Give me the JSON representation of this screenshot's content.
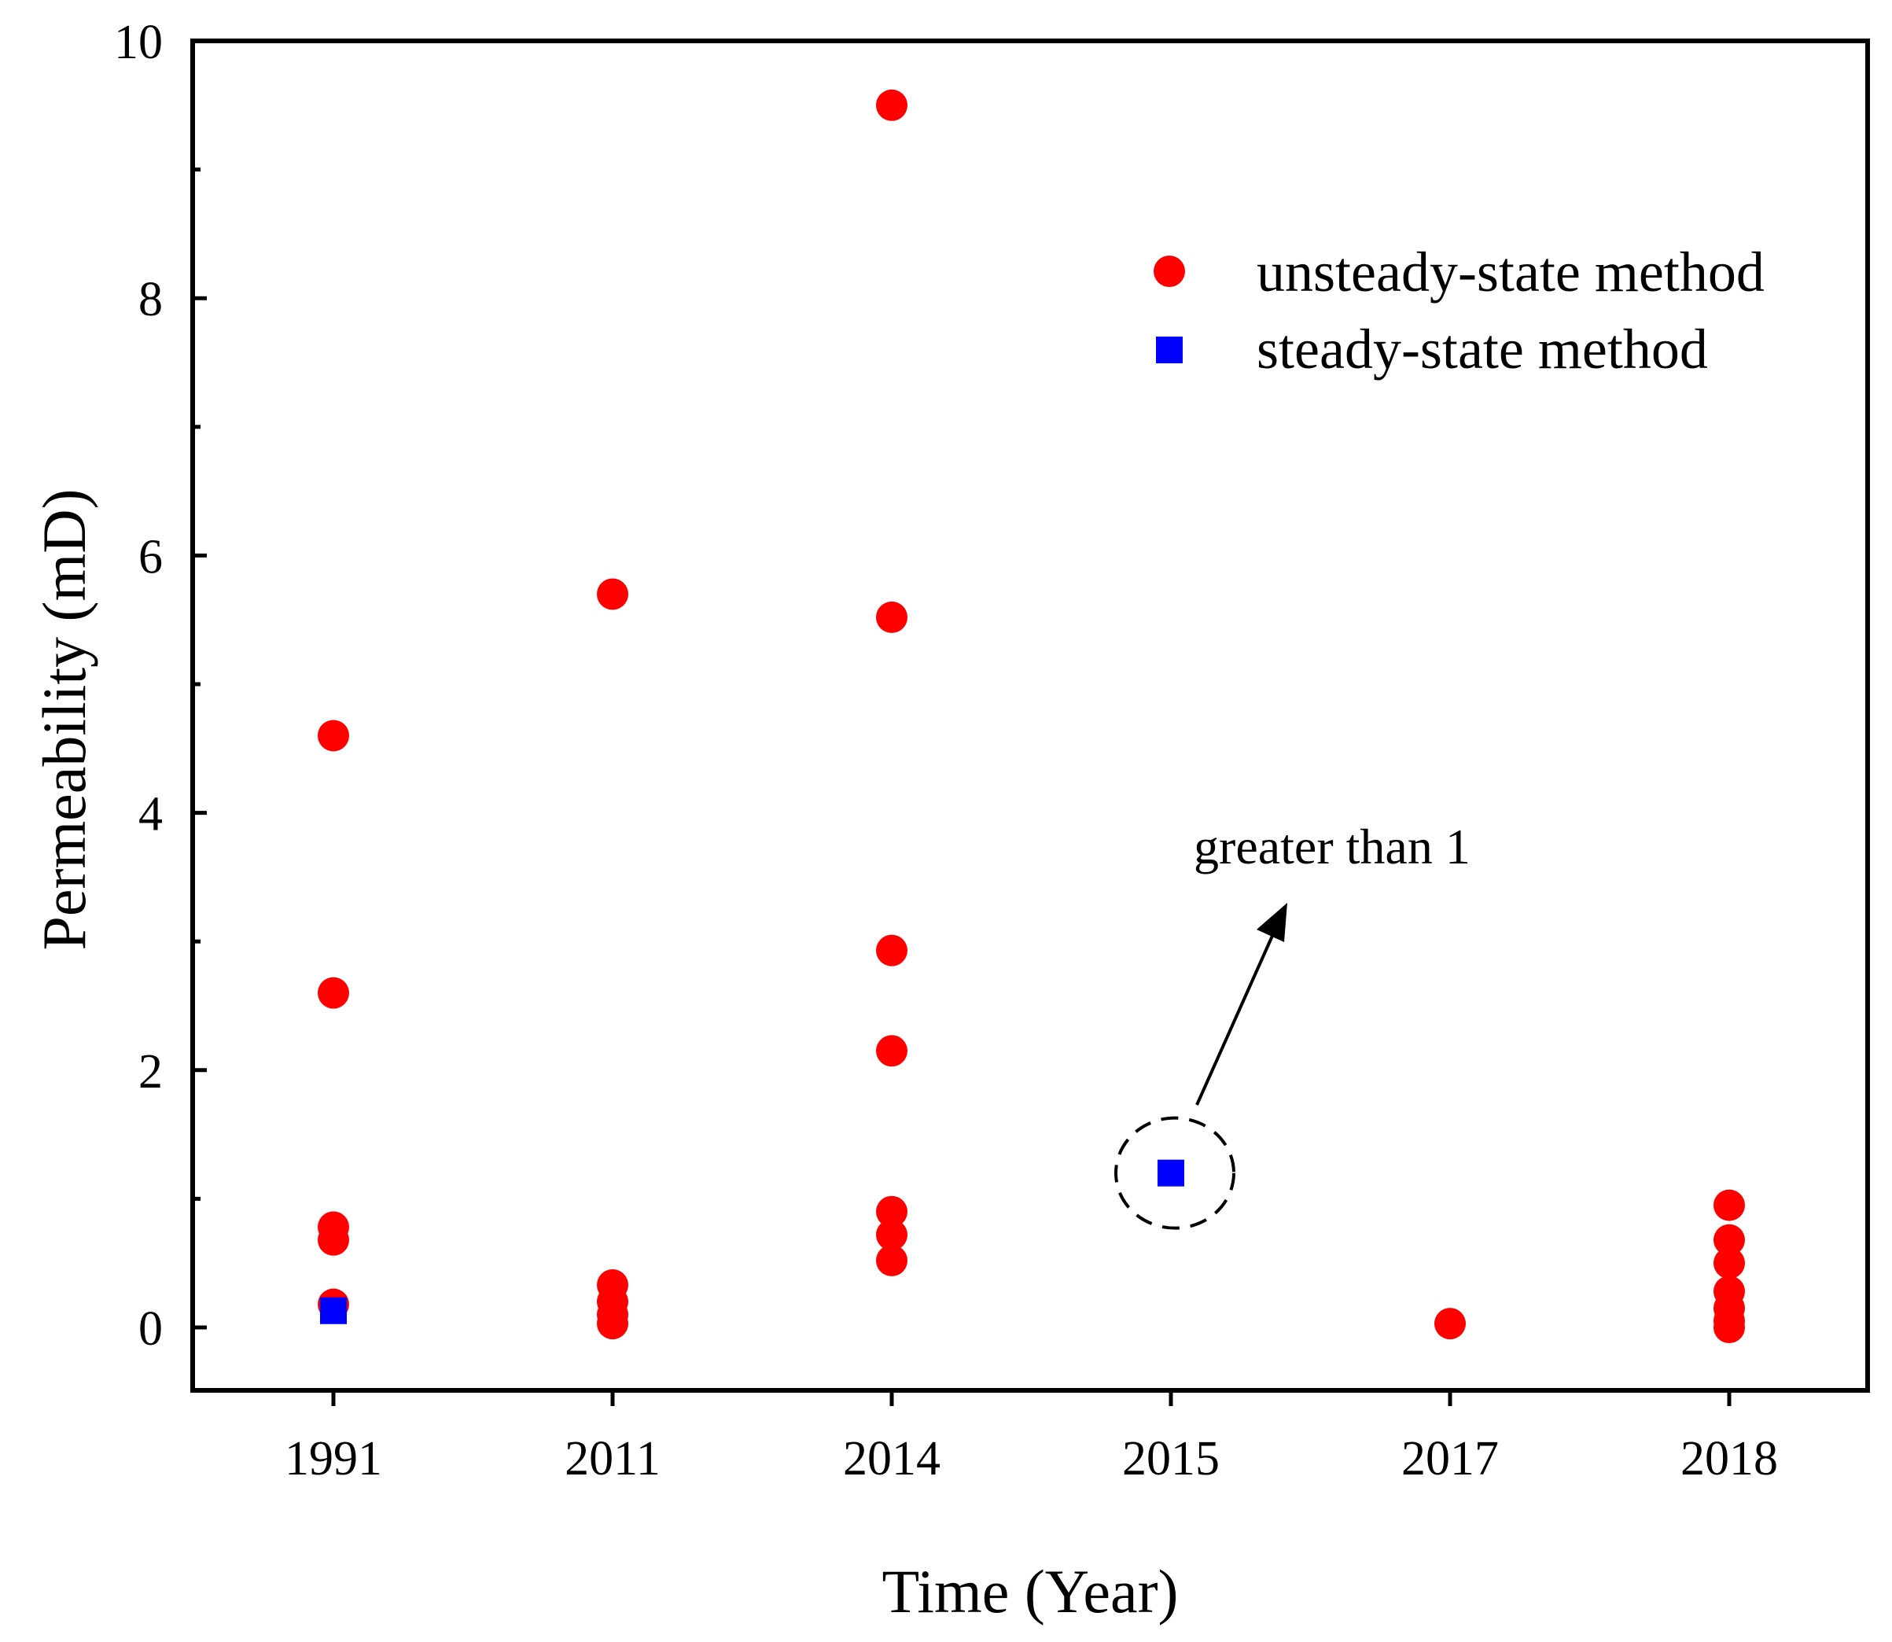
{
  "chart_data": {
    "type": "scatter",
    "title": "",
    "xlabel": "Time (Year)",
    "ylabel": "Permeability (mD)",
    "categories": [
      "1991",
      "2011",
      "2014",
      "2015",
      "2017",
      "2018"
    ],
    "ylim": [
      -0.5,
      10
    ],
    "yticks": [
      "0",
      "2",
      "4",
      "6",
      "8",
      "10"
    ],
    "legend_position": "top-right",
    "series": [
      {
        "name": "unsteady-state method",
        "marker": "circle",
        "color": "#ff0000",
        "points": [
          {
            "x": "1991",
            "y": 4.6
          },
          {
            "x": "1991",
            "y": 2.6
          },
          {
            "x": "1991",
            "y": 0.78
          },
          {
            "x": "1991",
            "y": 0.68
          },
          {
            "x": "1991",
            "y": 0.18
          },
          {
            "x": "2011",
            "y": 5.7
          },
          {
            "x": "2011",
            "y": 0.33
          },
          {
            "x": "2011",
            "y": 0.2
          },
          {
            "x": "2011",
            "y": 0.1
          },
          {
            "x": "2011",
            "y": 0.03
          },
          {
            "x": "2014",
            "y": 9.5
          },
          {
            "x": "2014",
            "y": 5.52
          },
          {
            "x": "2014",
            "y": 2.93
          },
          {
            "x": "2014",
            "y": 2.15
          },
          {
            "x": "2014",
            "y": 0.9
          },
          {
            "x": "2014",
            "y": 0.72
          },
          {
            "x": "2014",
            "y": 0.52
          },
          {
            "x": "2017",
            "y": 0.03
          },
          {
            "x": "2018",
            "y": 0.95
          },
          {
            "x": "2018",
            "y": 0.68
          },
          {
            "x": "2018",
            "y": 0.5
          },
          {
            "x": "2018",
            "y": 0.28
          },
          {
            "x": "2018",
            "y": 0.15
          },
          {
            "x": "2018",
            "y": 0.05
          },
          {
            "x": "2018",
            "y": 0.0
          }
        ]
      },
      {
        "name": "steady-state method",
        "marker": "square",
        "color": "#0000ff",
        "points": [
          {
            "x": "1991",
            "y": 0.13
          },
          {
            "x": "2015",
            "y": 1.2
          }
        ]
      }
    ],
    "annotations": [
      {
        "text": "greater than 1",
        "target": {
          "x": "2015",
          "y": 1.2
        },
        "style": "dashed-circle-with-arrow"
      }
    ]
  }
}
